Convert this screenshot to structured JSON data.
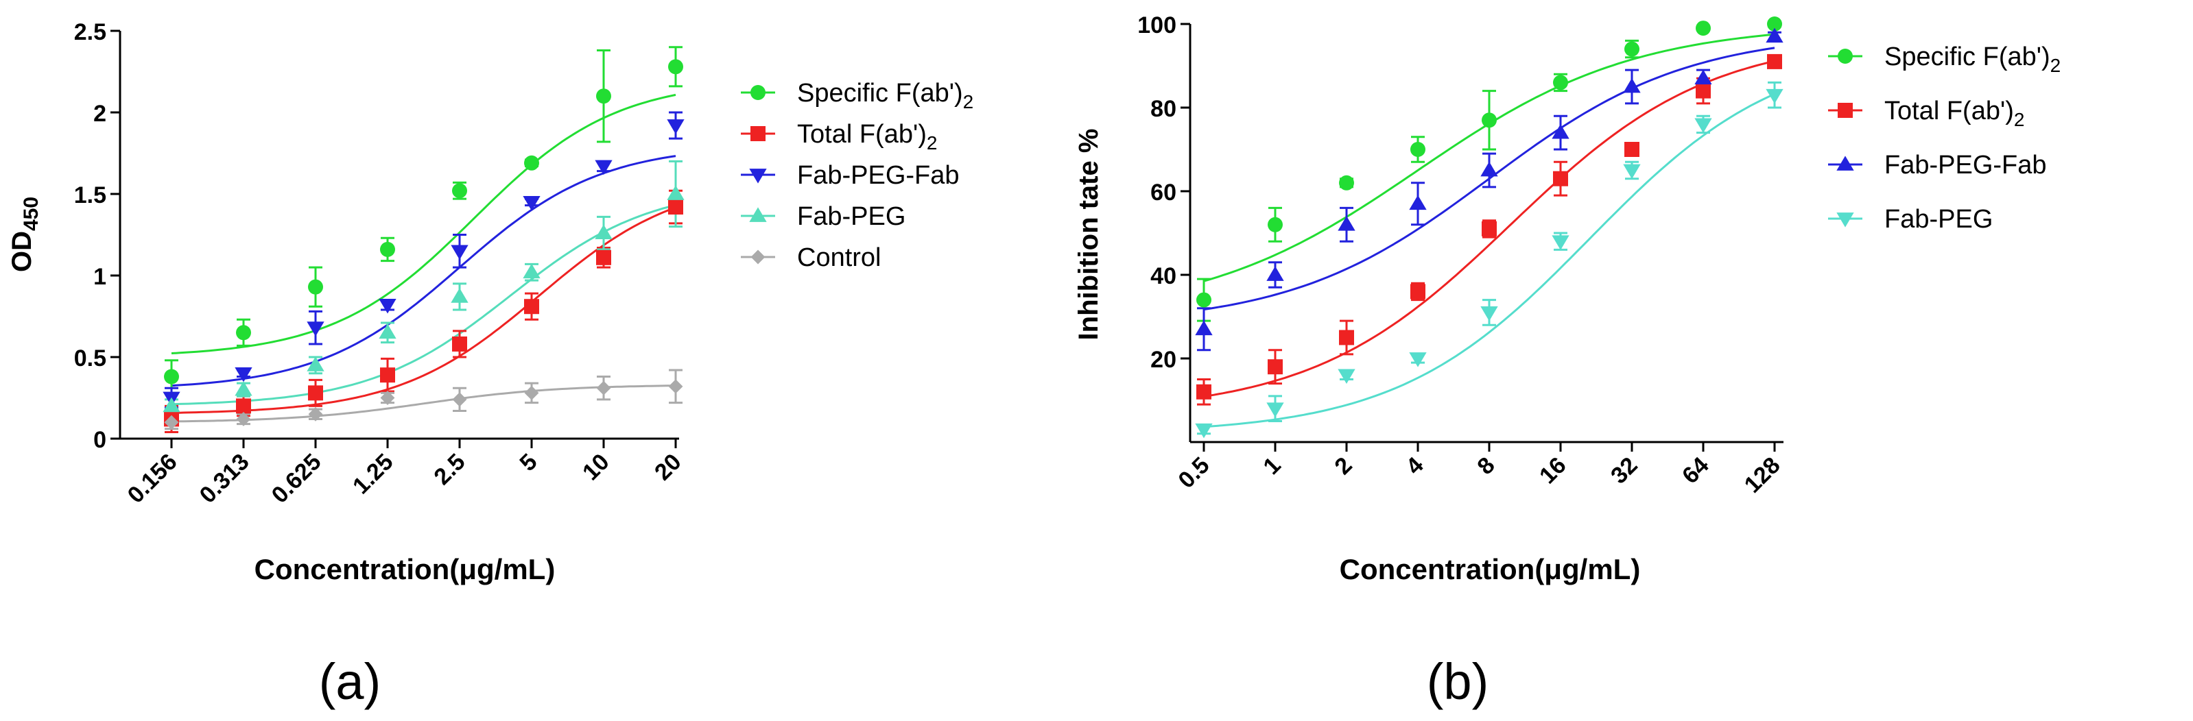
{
  "chart_data": [
    {
      "type": "scatter",
      "panel_label": "(a)",
      "xlabel": "Concentration(μg/mL)",
      "ylabel": "OD",
      "ylabel_sub": "450",
      "ylim": [
        0,
        2.5
      ],
      "yticks": [
        "0",
        "0.5",
        "1",
        "1.5",
        "2",
        "2.5"
      ],
      "yticks_values": [
        0,
        0.5,
        1,
        1.5,
        2,
        2.5
      ],
      "categories": [
        "0.156",
        "0.313",
        "0.625",
        "1.25",
        "2.5",
        "5",
        "10",
        "20"
      ],
      "series": [
        {
          "name": "Specific F(ab')",
          "name_sub": "2",
          "color": "#22dd33",
          "marker": "circle",
          "values": [
            0.38,
            0.65,
            0.93,
            1.16,
            1.52,
            1.69,
            2.1,
            2.28
          ],
          "errors": [
            0.1,
            0.08,
            0.12,
            0.07,
            0.05,
            0.02,
            0.28,
            0.12
          ],
          "fit": {
            "bottom": 0.5,
            "top": 2.2,
            "mid_index": 4.2,
            "slope": 0.85
          }
        },
        {
          "name": "Total  F(ab')",
          "name_sub": "2",
          "color": "#ee2222",
          "marker": "square",
          "values": [
            0.12,
            0.2,
            0.28,
            0.39,
            0.58,
            0.81,
            1.11,
            1.42
          ],
          "errors": [
            0.08,
            0.06,
            0.08,
            0.1,
            0.08,
            0.08,
            0.06,
            0.1
          ],
          "fit": {
            "bottom": 0.15,
            "top": 1.6,
            "mid_index": 5.1,
            "slope": 0.85
          }
        },
        {
          "name": "Fab-PEG-Fab",
          "name_sub": "",
          "color": "#2222dd",
          "marker": "triangle-down",
          "values": [
            0.25,
            0.4,
            0.68,
            0.82,
            1.15,
            1.45,
            1.67,
            1.92
          ],
          "errors": [
            0.06,
            0.02,
            0.1,
            0.03,
            0.1,
            0.02,
            0.03,
            0.08
          ],
          "fit": {
            "bottom": 0.3,
            "top": 1.8,
            "mid_index": 4.0,
            "slope": 0.85
          }
        },
        {
          "name": "Fab-PEG",
          "name_sub": "",
          "color": "#55ddbb",
          "marker": "triangle-up",
          "values": [
            0.2,
            0.3,
            0.45,
            0.65,
            0.87,
            1.02,
            1.26,
            1.5
          ],
          "errors": [
            0.04,
            0.04,
            0.05,
            0.06,
            0.08,
            0.05,
            0.1,
            0.2
          ],
          "fit": {
            "bottom": 0.2,
            "top": 1.55,
            "mid_index": 4.7,
            "slope": 0.85
          }
        },
        {
          "name": "Control",
          "name_sub": "",
          "color": "#aaaaaa",
          "marker": "diamond",
          "values": [
            0.1,
            0.12,
            0.15,
            0.25,
            0.24,
            0.28,
            0.31,
            0.32
          ],
          "errors": [
            0.04,
            0.03,
            0.03,
            0.03,
            0.07,
            0.06,
            0.07,
            0.1
          ],
          "fit": {
            "bottom": 0.1,
            "top": 0.33,
            "mid_index": 3.5,
            "slope": 0.9
          }
        }
      ]
    },
    {
      "type": "scatter",
      "panel_label": "(b)",
      "xlabel": "Concentration(μg/mL)",
      "ylabel": "Inhibition tate %",
      "ylim": [
        0,
        100
      ],
      "yticks": [
        "20",
        "40",
        "60",
        "80",
        "100"
      ],
      "yticks_values": [
        20,
        40,
        60,
        80,
        100
      ],
      "categories": [
        "0.5",
        "1",
        "2",
        "4",
        "8",
        "16",
        "32",
        "64",
        "128"
      ],
      "series": [
        {
          "name": "Specific F(ab')",
          "name_sub": "2",
          "color": "#22dd33",
          "marker": "circle",
          "values": [
            34,
            52,
            62,
            70,
            77,
            86,
            94,
            99,
            100
          ],
          "errors": [
            5,
            4,
            1,
            3,
            7,
            2,
            2,
            0.5,
            0.5
          ],
          "fit": {
            "bottom": 30,
            "top": 100,
            "mid_index": 3.0,
            "slope": 0.55
          }
        },
        {
          "name": "Total F(ab')",
          "name_sub": "2",
          "color": "#ee2222",
          "marker": "square",
          "values": [
            12,
            18,
            25,
            36,
            51,
            63,
            70,
            84,
            91
          ],
          "errors": [
            3,
            4,
            4,
            2,
            2,
            4,
            1,
            3,
            1
          ],
          "fit": {
            "bottom": 7,
            "top": 97,
            "mid_index": 4.3,
            "slope": 0.6
          }
        },
        {
          "name": "Fab-PEG-Fab",
          "name_sub": "",
          "color": "#2222dd",
          "marker": "triangle-up",
          "values": [
            27,
            40,
            52,
            57,
            65,
            74,
            85,
            87,
            97
          ],
          "errors": [
            5,
            3,
            4,
            5,
            4,
            4,
            4,
            2,
            1
          ],
          "fit": {
            "bottom": 28,
            "top": 98,
            "mid_index": 4.0,
            "slope": 0.6
          }
        },
        {
          "name": "Fab-PEG",
          "name_sub": "",
          "color": "#55ddcc",
          "marker": "triangle-down",
          "values": [
            3,
            8,
            16,
            20,
            31,
            48,
            65,
            76,
            83
          ],
          "errors": [
            1,
            3,
            1,
            1,
            3,
            2,
            2,
            2,
            3
          ],
          "fit": {
            "bottom": 2,
            "top": 95,
            "mid_index": 5.4,
            "slope": 0.62
          }
        }
      ]
    }
  ]
}
